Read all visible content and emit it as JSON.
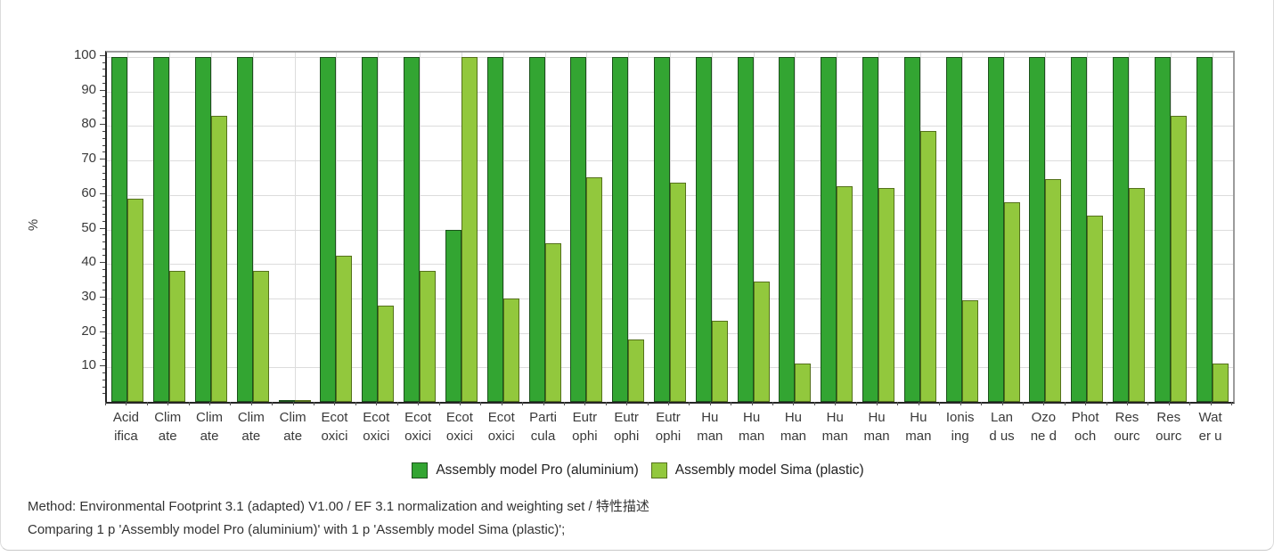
{
  "chart_data": {
    "type": "bar",
    "title": "",
    "ylabel": "%",
    "ylim": [
      0,
      100
    ],
    "yticks": [
      10,
      20,
      30,
      40,
      50,
      60,
      70,
      80,
      90,
      100
    ],
    "grid": "horizontal gridlines every 10%, vertical light gridline at each category center",
    "legend_position": "bottom-center",
    "categories": [
      "Acid ifica",
      "Clim ate",
      "Clim ate",
      "Clim ate",
      "Clim ate",
      "Ecot oxici",
      "Ecot oxici",
      "Ecot oxici",
      "Ecot oxici",
      "Ecot oxici",
      "Parti cula",
      "Eutr ophi",
      "Eutr ophi",
      "Eutr ophi",
      "Hu man",
      "Hu man",
      "Hu man",
      "Hu man",
      "Hu man",
      "Hu man",
      "Ionis ing",
      "Lan d us",
      "Ozo ne d",
      "Phot och",
      "Res ourc",
      "Res ourc",
      "Wat er u"
    ],
    "series": [
      {
        "name": "Assembly model Pro (aluminium)",
        "color": "#33a532",
        "border_color": "#1b511b",
        "values": [
          100,
          100,
          100,
          100,
          0.5,
          100,
          100,
          100,
          50,
          100,
          100,
          100,
          100,
          100,
          100,
          100,
          100,
          100,
          100,
          100,
          100,
          100,
          100,
          100,
          100,
          100,
          100
        ]
      },
      {
        "name": "Assembly model Sima (plastic)",
        "color": "#92c83d",
        "border_color": "#55711c",
        "values": [
          59,
          38,
          83,
          38,
          0.5,
          42.5,
          28,
          38,
          100,
          30,
          46,
          65,
          18,
          63.5,
          23.5,
          35,
          11,
          62.5,
          62,
          78.5,
          29.5,
          58,
          64.5,
          54,
          62,
          83,
          11
        ]
      }
    ]
  },
  "footer": {
    "method_line": "Method: Environmental Footprint 3.1 (adapted) V1.00 / EF 3.1 normalization and weighting set / 特性描述",
    "comparing_line": "Comparing 1 p 'Assembly model Pro (aluminium)' with 1 p 'Assembly model Sima (plastic)';"
  }
}
